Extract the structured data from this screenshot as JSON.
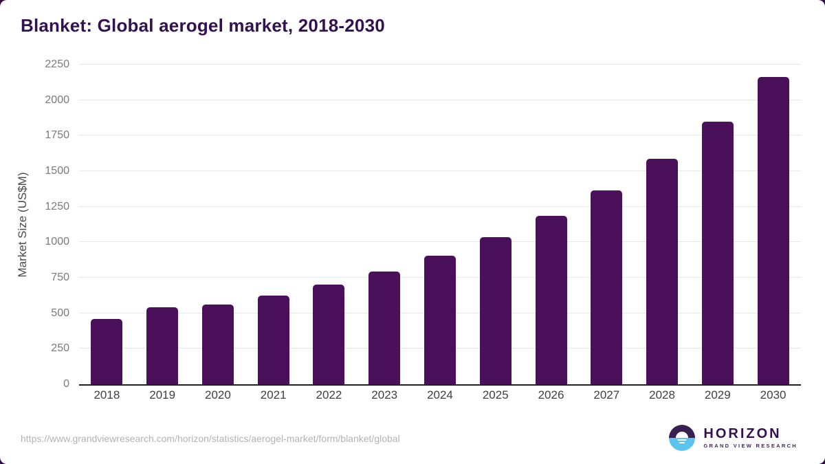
{
  "page": {
    "background_color": "#ffffff",
    "frame_color": "#2f0e45"
  },
  "header": {
    "title": "Blanket: Global aerogel market, 2018-2030",
    "title_color": "#321150"
  },
  "chart_data": {
    "type": "bar",
    "title": "Blanket: Global aerogel market, 2018-2030",
    "categories": [
      "2018",
      "2019",
      "2020",
      "2021",
      "2022",
      "2023",
      "2024",
      "2025",
      "2026",
      "2027",
      "2028",
      "2029",
      "2030"
    ],
    "values": [
      460,
      540,
      560,
      625,
      700,
      795,
      905,
      1035,
      1185,
      1365,
      1585,
      1850,
      2165
    ],
    "xlabel": "",
    "ylabel": "Market Size (US$M)",
    "ylim": [
      0,
      2250
    ],
    "yticks": [
      0,
      250,
      500,
      750,
      1000,
      1250,
      1500,
      1750,
      2000,
      2250
    ],
    "grid": "horizontal",
    "legend": "none",
    "bar_color": "#4A115A"
  },
  "footer": {
    "source_url": "https://www.grandviewresearch.com/horizon/statistics/aerogel-market/form/blanket/global",
    "logo": {
      "icon": "sunrise-over-water-circle",
      "brand": "HORIZON",
      "sub_brand": "GRAND VIEW RESEARCH",
      "purple": "#372153",
      "blue": "#5bc5f0"
    }
  }
}
